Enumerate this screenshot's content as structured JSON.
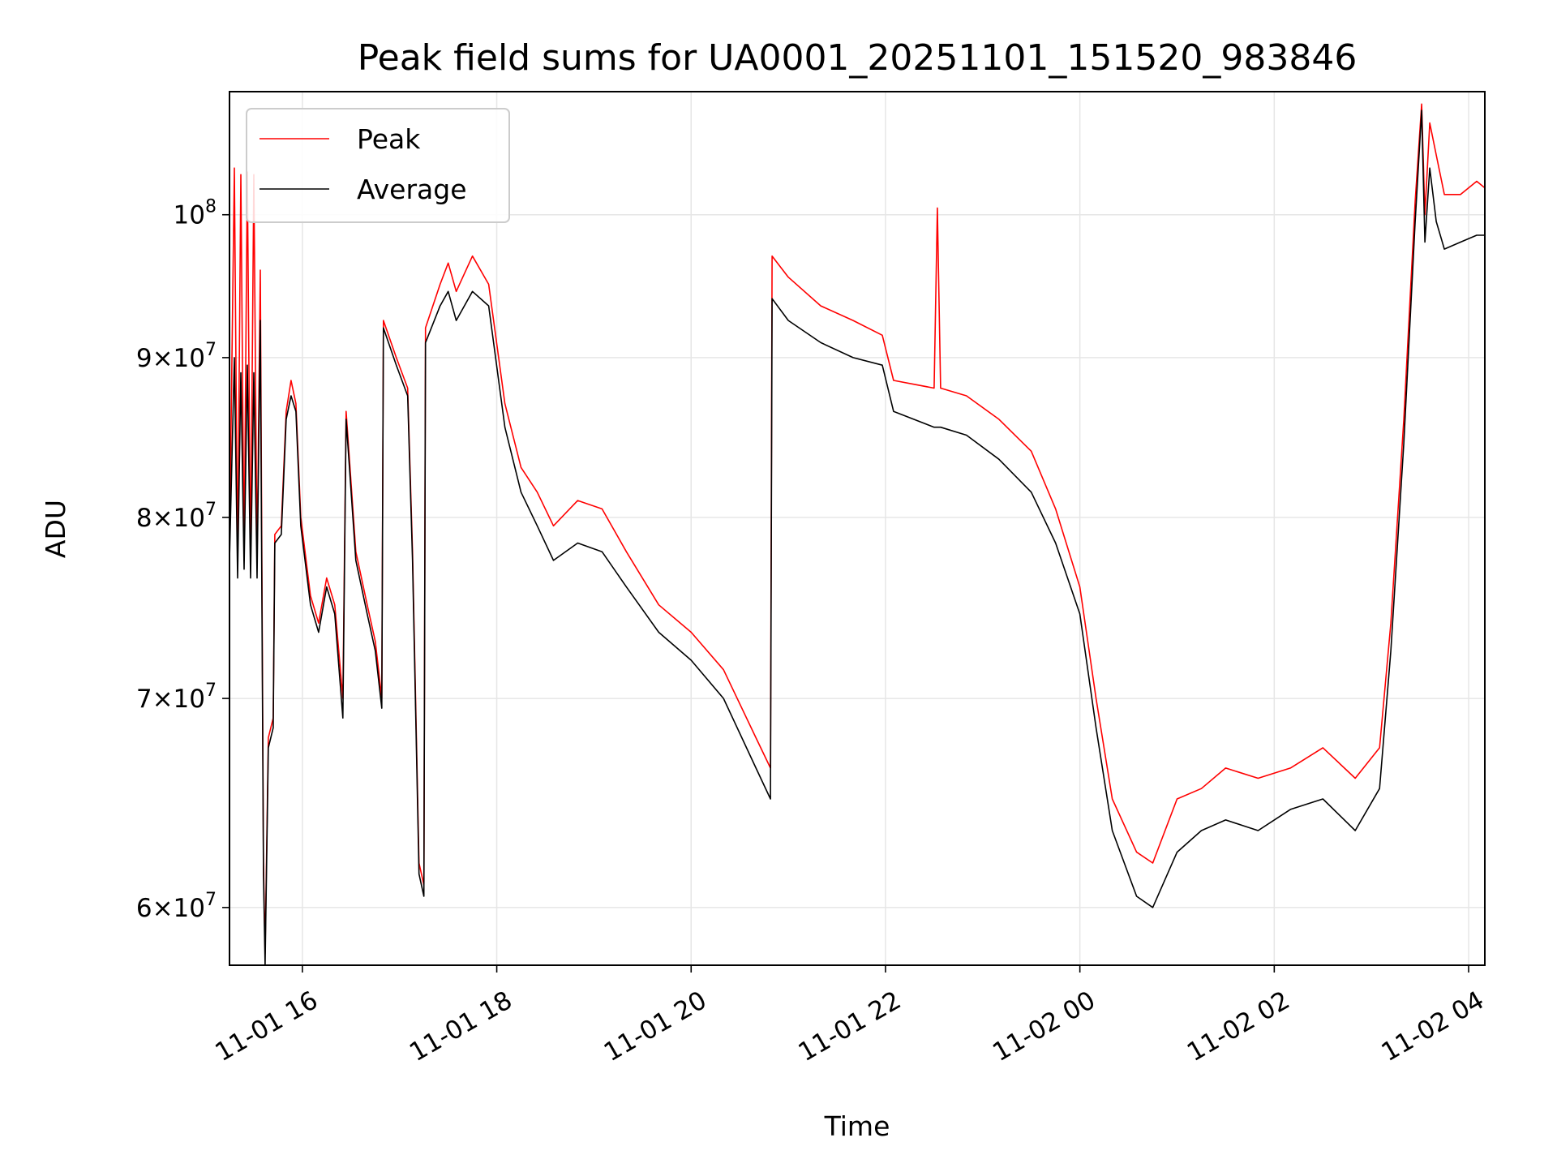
{
  "chart_data": {
    "type": "line",
    "title": "Peak field sums for UA0001_20251101_151520_983846",
    "xlabel": "Time",
    "ylabel": "ADU",
    "x_unit": "date-time",
    "y_scale": "log",
    "xlim": [
      "2025-11-01T15:15",
      "2025-11-02T04:10"
    ],
    "ylim": [
      57500000,
      109500000
    ],
    "grid": true,
    "legend_position": "upper left",
    "x_ticks": [
      {
        "t": "2025-11-01T16:00",
        "label": "11-01 16"
      },
      {
        "t": "2025-11-01T18:00",
        "label": "11-01 18"
      },
      {
        "t": "2025-11-01T20:00",
        "label": "11-01 20"
      },
      {
        "t": "2025-11-01T22:00",
        "label": "11-01 22"
      },
      {
        "t": "2025-11-02T00:00",
        "label": "11-02 00"
      },
      {
        "t": "2025-11-02T02:00",
        "label": "11-02 02"
      },
      {
        "t": "2025-11-02T04:00",
        "label": "11-02 04"
      }
    ],
    "y_ticks": [
      {
        "v": 60000000,
        "mant": "6",
        "exp": "7"
      },
      {
        "v": 70000000,
        "mant": "7",
        "exp": "7"
      },
      {
        "v": 80000000,
        "mant": "8",
        "exp": "7"
      },
      {
        "v": 90000000,
        "mant": "9",
        "exp": "7"
      },
      {
        "v": 100000000,
        "mant": "",
        "exp": "8"
      }
    ],
    "series": [
      {
        "name": "Peak",
        "color": "#ff0000",
        "points": [
          [
            "2025-11-01T15:15",
            78000000
          ],
          [
            "2025-11-01T15:18",
            103500000
          ],
          [
            "2025-11-01T15:20",
            77000000
          ],
          [
            "2025-11-01T15:22",
            103000000
          ],
          [
            "2025-11-01T15:24",
            77500000
          ],
          [
            "2025-11-01T15:26",
            103200000
          ],
          [
            "2025-11-01T15:28",
            77000000
          ],
          [
            "2025-11-01T15:30",
            103000000
          ],
          [
            "2025-11-01T15:32",
            77500000
          ],
          [
            "2025-11-01T15:34",
            96000000
          ],
          [
            "2025-11-01T15:36",
            62000000
          ],
          [
            "2025-11-01T15:37",
            58000000
          ],
          [
            "2025-11-01T15:39",
            68000000
          ],
          [
            "2025-11-01T15:42",
            69000000
          ],
          [
            "2025-11-01T15:43",
            79000000
          ],
          [
            "2025-11-01T15:47",
            79500000
          ],
          [
            "2025-11-01T15:50",
            86500000
          ],
          [
            "2025-11-01T15:53",
            88500000
          ],
          [
            "2025-11-01T15:56",
            87000000
          ],
          [
            "2025-11-01T15:59",
            80000000
          ],
          [
            "2025-11-01T16:05",
            75500000
          ],
          [
            "2025-11-01T16:10",
            74000000
          ],
          [
            "2025-11-01T16:15",
            76500000
          ],
          [
            "2025-11-01T16:20",
            75000000
          ],
          [
            "2025-11-01T16:25",
            70000000
          ],
          [
            "2025-11-01T16:27",
            86500000
          ],
          [
            "2025-11-01T16:33",
            78000000
          ],
          [
            "2025-11-01T16:40",
            75000000
          ],
          [
            "2025-11-01T16:45",
            73000000
          ],
          [
            "2025-11-01T16:49",
            70000000
          ],
          [
            "2025-11-01T16:50",
            92500000
          ],
          [
            "2025-11-01T16:58",
            90000000
          ],
          [
            "2025-11-01T17:05",
            88000000
          ],
          [
            "2025-11-01T17:08",
            78000000
          ],
          [
            "2025-11-01T17:12",
            62000000
          ],
          [
            "2025-11-01T17:15",
            61000000
          ],
          [
            "2025-11-01T17:16",
            92000000
          ],
          [
            "2025-11-01T17:25",
            95000000
          ],
          [
            "2025-11-01T17:30",
            96500000
          ],
          [
            "2025-11-01T17:35",
            94500000
          ],
          [
            "2025-11-01T17:45",
            97000000
          ],
          [
            "2025-11-01T17:55",
            95000000
          ],
          [
            "2025-11-01T18:05",
            87000000
          ],
          [
            "2025-11-01T18:15",
            83000000
          ],
          [
            "2025-11-01T18:25",
            81500000
          ],
          [
            "2025-11-01T18:35",
            79500000
          ],
          [
            "2025-11-01T18:50",
            81000000
          ],
          [
            "2025-11-01T19:05",
            80500000
          ],
          [
            "2025-11-01T19:20",
            78000000
          ],
          [
            "2025-11-01T19:40",
            75000000
          ],
          [
            "2025-11-01T20:00",
            73500000
          ],
          [
            "2025-11-01T20:20",
            71500000
          ],
          [
            "2025-11-01T20:40",
            68000000
          ],
          [
            "2025-11-01T20:49",
            66500000
          ],
          [
            "2025-11-01T20:50",
            97000000
          ],
          [
            "2025-11-01T21:00",
            95500000
          ],
          [
            "2025-11-01T21:20",
            93500000
          ],
          [
            "2025-11-01T21:40",
            92500000
          ],
          [
            "2025-11-01T21:58",
            91500000
          ],
          [
            "2025-11-01T22:05",
            88500000
          ],
          [
            "2025-11-01T22:30",
            88000000
          ],
          [
            "2025-11-01T22:32",
            100500000
          ],
          [
            "2025-11-01T22:34",
            88000000
          ],
          [
            "2025-11-01T22:50",
            87500000
          ],
          [
            "2025-11-01T23:10",
            86000000
          ],
          [
            "2025-11-01T23:30",
            84000000
          ],
          [
            "2025-11-01T23:45",
            80500000
          ],
          [
            "2025-11-02T00:00",
            76000000
          ],
          [
            "2025-11-02T00:10",
            70000000
          ],
          [
            "2025-11-02T00:20",
            65000000
          ],
          [
            "2025-11-02T00:35",
            62500000
          ],
          [
            "2025-11-02T00:45",
            62000000
          ],
          [
            "2025-11-02T01:00",
            65000000
          ],
          [
            "2025-11-02T01:15",
            65500000
          ],
          [
            "2025-11-02T01:30",
            66500000
          ],
          [
            "2025-11-02T01:50",
            66000000
          ],
          [
            "2025-11-02T02:10",
            66500000
          ],
          [
            "2025-11-02T02:30",
            67500000
          ],
          [
            "2025-11-02T02:50",
            66000000
          ],
          [
            "2025-11-02T03:05",
            67500000
          ],
          [
            "2025-11-02T03:12",
            74000000
          ],
          [
            "2025-11-02T03:20",
            86000000
          ],
          [
            "2025-11-02T03:27",
            101000000
          ],
          [
            "2025-11-02T03:31",
            108500000
          ],
          [
            "2025-11-02T03:33",
            100000000
          ],
          [
            "2025-11-02T03:36",
            107000000
          ],
          [
            "2025-11-02T03:40",
            104500000
          ],
          [
            "2025-11-02T03:45",
            101500000
          ],
          [
            "2025-11-02T03:55",
            101500000
          ],
          [
            "2025-11-02T04:05",
            102500000
          ],
          [
            "2025-11-02T04:10",
            102000000
          ]
        ]
      },
      {
        "name": "Average",
        "color": "#000000",
        "points": [
          [
            "2025-11-01T15:15",
            77500000
          ],
          [
            "2025-11-01T15:18",
            90000000
          ],
          [
            "2025-11-01T15:20",
            76500000
          ],
          [
            "2025-11-01T15:22",
            89000000
          ],
          [
            "2025-11-01T15:24",
            77000000
          ],
          [
            "2025-11-01T15:26",
            89500000
          ],
          [
            "2025-11-01T15:28",
            76500000
          ],
          [
            "2025-11-01T15:30",
            89000000
          ],
          [
            "2025-11-01T15:32",
            76500000
          ],
          [
            "2025-11-01T15:34",
            92500000
          ],
          [
            "2025-11-01T15:36",
            61500000
          ],
          [
            "2025-11-01T15:37",
            57500000
          ],
          [
            "2025-11-01T15:39",
            67500000
          ],
          [
            "2025-11-01T15:42",
            68500000
          ],
          [
            "2025-11-01T15:43",
            78500000
          ],
          [
            "2025-11-01T15:47",
            79000000
          ],
          [
            "2025-11-01T15:50",
            86000000
          ],
          [
            "2025-11-01T15:53",
            87500000
          ],
          [
            "2025-11-01T15:56",
            86500000
          ],
          [
            "2025-11-01T15:59",
            79500000
          ],
          [
            "2025-11-01T16:05",
            75000000
          ],
          [
            "2025-11-01T16:10",
            73500000
          ],
          [
            "2025-11-01T16:15",
            76000000
          ],
          [
            "2025-11-01T16:20",
            74500000
          ],
          [
            "2025-11-01T16:25",
            69000000
          ],
          [
            "2025-11-01T16:27",
            86000000
          ],
          [
            "2025-11-01T16:33",
            77500000
          ],
          [
            "2025-11-01T16:40",
            74500000
          ],
          [
            "2025-11-01T16:45",
            72500000
          ],
          [
            "2025-11-01T16:49",
            69500000
          ],
          [
            "2025-11-01T16:50",
            92000000
          ],
          [
            "2025-11-01T16:58",
            89500000
          ],
          [
            "2025-11-01T17:05",
            87500000
          ],
          [
            "2025-11-01T17:08",
            77500000
          ],
          [
            "2025-11-01T17:12",
            61500000
          ],
          [
            "2025-11-01T17:15",
            60500000
          ],
          [
            "2025-11-01T17:16",
            91000000
          ],
          [
            "2025-11-01T17:25",
            93500000
          ],
          [
            "2025-11-01T17:30",
            94500000
          ],
          [
            "2025-11-01T17:35",
            92500000
          ],
          [
            "2025-11-01T17:45",
            94500000
          ],
          [
            "2025-11-01T17:55",
            93500000
          ],
          [
            "2025-11-01T18:05",
            85500000
          ],
          [
            "2025-11-01T18:15",
            81500000
          ],
          [
            "2025-11-01T18:25",
            79500000
          ],
          [
            "2025-11-01T18:35",
            77500000
          ],
          [
            "2025-11-01T18:50",
            78500000
          ],
          [
            "2025-11-01T19:05",
            78000000
          ],
          [
            "2025-11-01T19:20",
            76000000
          ],
          [
            "2025-11-01T19:40",
            73500000
          ],
          [
            "2025-11-01T20:00",
            72000000
          ],
          [
            "2025-11-01T20:20",
            70000000
          ],
          [
            "2025-11-01T20:40",
            66500000
          ],
          [
            "2025-11-01T20:49",
            65000000
          ],
          [
            "2025-11-01T20:50",
            94000000
          ],
          [
            "2025-11-01T21:00",
            92500000
          ],
          [
            "2025-11-01T21:20",
            91000000
          ],
          [
            "2025-11-01T21:40",
            90000000
          ],
          [
            "2025-11-01T21:58",
            89500000
          ],
          [
            "2025-11-01T22:05",
            86500000
          ],
          [
            "2025-11-01T22:30",
            85500000
          ],
          [
            "2025-11-01T22:32",
            85500000
          ],
          [
            "2025-11-01T22:34",
            85500000
          ],
          [
            "2025-11-01T22:50",
            85000000
          ],
          [
            "2025-11-01T23:10",
            83500000
          ],
          [
            "2025-11-01T23:30",
            81500000
          ],
          [
            "2025-11-01T23:45",
            78500000
          ],
          [
            "2025-11-02T00:00",
            74500000
          ],
          [
            "2025-11-02T00:10",
            68500000
          ],
          [
            "2025-11-02T00:20",
            63500000
          ],
          [
            "2025-11-02T00:35",
            60500000
          ],
          [
            "2025-11-02T00:45",
            60000000
          ],
          [
            "2025-11-02T01:00",
            62500000
          ],
          [
            "2025-11-02T01:15",
            63500000
          ],
          [
            "2025-11-02T01:30",
            64000000
          ],
          [
            "2025-11-02T01:50",
            63500000
          ],
          [
            "2025-11-02T02:10",
            64500000
          ],
          [
            "2025-11-02T02:30",
            65000000
          ],
          [
            "2025-11-02T02:50",
            63500000
          ],
          [
            "2025-11-02T03:05",
            65500000
          ],
          [
            "2025-11-02T03:12",
            72500000
          ],
          [
            "2025-11-02T03:20",
            84500000
          ],
          [
            "2025-11-02T03:27",
            99500000
          ],
          [
            "2025-11-02T03:31",
            108000000
          ],
          [
            "2025-11-02T03:33",
            98000000
          ],
          [
            "2025-11-02T03:36",
            103500000
          ],
          [
            "2025-11-02T03:40",
            99500000
          ],
          [
            "2025-11-02T03:45",
            97500000
          ],
          [
            "2025-11-02T03:55",
            98000000
          ],
          [
            "2025-11-02T04:05",
            98500000
          ],
          [
            "2025-11-02T04:10",
            98500000
          ]
        ]
      }
    ]
  }
}
